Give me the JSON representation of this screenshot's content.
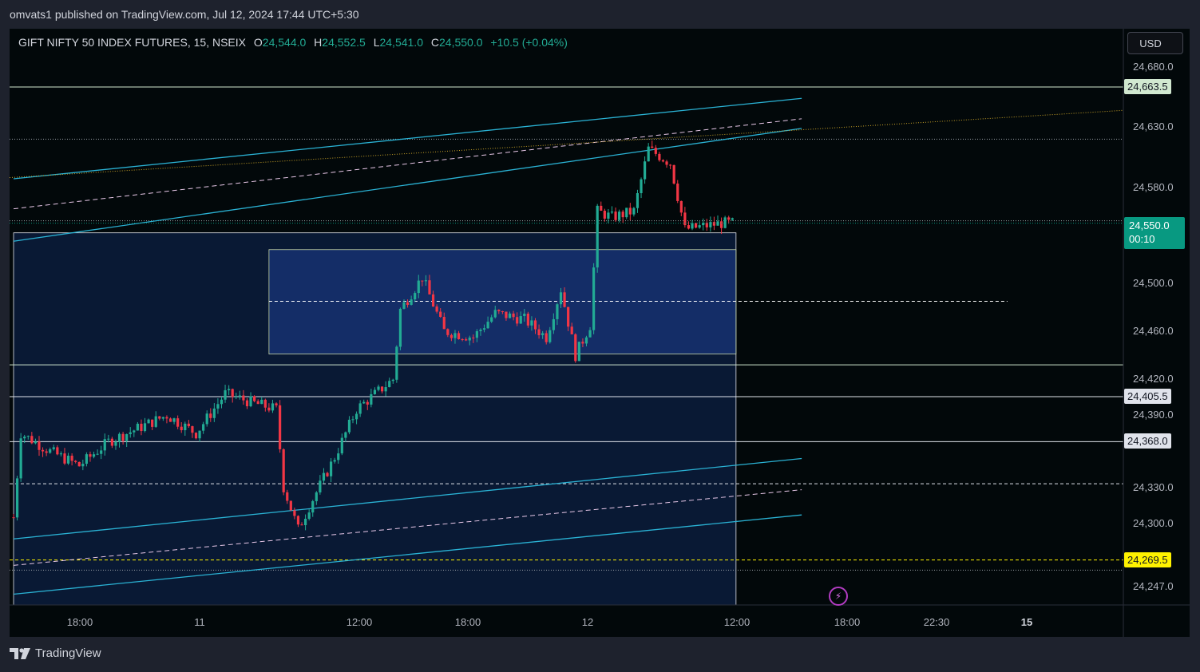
{
  "header": {
    "author": "omvats1",
    "published_text": "published on TradingView.com, Jul 12, 2024 17:44 UTC+5:30"
  },
  "legend": {
    "symbol": "GIFT NIFTY 50 INDEX FUTURES, 15, NSEIX",
    "o_label": "O",
    "o_value": "24,544.0",
    "h_label": "H",
    "h_value": "24,552.5",
    "l_label": "L",
    "l_value": "24,541.0",
    "c_label": "C",
    "c_value": "24,550.0",
    "change": "+10.5 (+0.04%)"
  },
  "currency": "USD",
  "last_price": {
    "price": "24,550.0",
    "countdown": "00:10",
    "color": "#089981"
  },
  "price_tags": [
    {
      "label": "24,663.5",
      "value": 24663.5,
      "bg": "#d1e8d0",
      "fg": "#131722"
    },
    {
      "label": "24,405.5",
      "value": 24405.5,
      "bg": "#e0e3eb",
      "fg": "#131722"
    },
    {
      "label": "24,368.0",
      "value": 24368.0,
      "bg": "#e0e3eb",
      "fg": "#131722"
    },
    {
      "label": "24,269.5",
      "value": 24269.5,
      "bg": "#fff200",
      "fg": "#131722"
    }
  ],
  "footer": {
    "brand": "TradingView"
  },
  "colors": {
    "up": "#22ab94",
    "down": "#f23645",
    "channel": "#2ab2d4",
    "zone": "#0f2a5e"
  },
  "chart_data": {
    "type": "candlestick",
    "symbol": "GIFT NIFTY 50 INDEX FUTURES",
    "timeframe": "15",
    "exchange": "NSEIX",
    "currency": "USD",
    "ylim": [
      24232,
      24712
    ],
    "y_ticks": [
      24680.0,
      24630.0,
      24580.0,
      24500.0,
      24460.0,
      24420.0,
      24390.0,
      24330.0,
      24300.0,
      24247.0
    ],
    "y_tick_labels": [
      "24,680.0",
      "24,630.0",
      "24,580.0",
      "24,500.0",
      "24,460.0",
      "24,420.0",
      "24,390.0",
      "24,330.0",
      "24,300.0",
      "24,247.0"
    ],
    "x_ticks": [
      "18:00",
      "11",
      "12:00",
      "18:00",
      "12",
      "12:00",
      "18:00",
      "22:30",
      "15"
    ],
    "x_bold_ticks": [
      "15"
    ],
    "ohlc_last": {
      "open": 24544.0,
      "high": 24552.5,
      "low": 24541.0,
      "close": 24550.0,
      "change": 10.5,
      "change_pct": 0.04
    },
    "anchors": [
      {
        "t": "Jul 10 15:30",
        "price": 24305
      },
      {
        "t": "Jul 10 16:00",
        "price": 24375
      },
      {
        "t": "Jul 10 18:00",
        "price": 24360
      },
      {
        "t": "Jul 10 20:00",
        "price": 24348
      },
      {
        "t": "Jul 10 22:00",
        "price": 24368
      },
      {
        "t": "Jul 11 02:00",
        "price": 24390
      },
      {
        "t": "Jul 11 04:00",
        "price": 24375
      },
      {
        "t": "Jul 11 06:00",
        "price": 24408
      },
      {
        "t": "Jul 11 08:00",
        "price": 24400
      },
      {
        "t": "Jul 11 09:30",
        "price": 24395
      },
      {
        "t": "Jul 11 10:00",
        "price": 24330
      },
      {
        "t": "Jul 11 11:00",
        "price": 24295
      },
      {
        "t": "Jul 11 12:00",
        "price": 24320
      },
      {
        "t": "Jul 11 13:30",
        "price": 24355
      },
      {
        "t": "Jul 11 15:00",
        "price": 24395
      },
      {
        "t": "Jul 11 16:30",
        "price": 24410
      },
      {
        "t": "Jul 11 17:30",
        "price": 24420
      },
      {
        "t": "Jul 11 18:00",
        "price": 24478
      },
      {
        "t": "Jul 11 19:30",
        "price": 24505
      },
      {
        "t": "Jul 11 21:00",
        "price": 24460
      },
      {
        "t": "Jul 11 23:00",
        "price": 24455
      },
      {
        "t": "Jul 12 00:30",
        "price": 24475
      },
      {
        "t": "Jul 12 02:30",
        "price": 24470
      },
      {
        "t": "Jul 12 04:00",
        "price": 24455
      },
      {
        "t": "Jul 12 05:00",
        "price": 24495
      },
      {
        "t": "Jul 12 06:00",
        "price": 24440
      },
      {
        "t": "Jul 12 07:00",
        "price": 24465
      },
      {
        "t": "Jul 12 07:30",
        "price": 24560
      },
      {
        "t": "Jul 12 08:30",
        "price": 24555
      },
      {
        "t": "Jul 12 10:00",
        "price": 24560
      },
      {
        "t": "Jul 12 11:00",
        "price": 24612
      },
      {
        "t": "Jul 12 12:30",
        "price": 24600
      },
      {
        "t": "Jul 12 13:30",
        "price": 24545
      },
      {
        "t": "Jul 12 15:00",
        "price": 24548
      },
      {
        "t": "Jul 12 16:00",
        "price": 24550
      }
    ],
    "horizontal_levels": [
      {
        "price": 24663.5,
        "style": "solid",
        "color": "#d1e8d0"
      },
      {
        "price": 24620.0,
        "style": "dotted",
        "color": "#9aa0a6"
      },
      {
        "price": 24552.0,
        "style": "dotted",
        "color": "#9aa0a6"
      },
      {
        "price": 24432.0,
        "style": "solid",
        "color": "#d1e8d0"
      },
      {
        "price": 24405.5,
        "style": "solid",
        "color": "#e0e3eb"
      },
      {
        "price": 24368.0,
        "style": "solid",
        "color": "#e0e3eb"
      },
      {
        "price": 24333.0,
        "style": "dashed",
        "color": "#e0e3eb"
      },
      {
        "price": 24269.5,
        "style": "dashed",
        "color": "#fff200"
      },
      {
        "price": 24261.0,
        "style": "dotted",
        "color": "#9aa0a6"
      }
    ],
    "zones": [
      {
        "name": "outer-zone",
        "from": "Jul 10 15:30",
        "to": "Jul 12 17:00",
        "low": 24232,
        "high": 24542,
        "color": "#0f2a5e"
      },
      {
        "name": "inner-range",
        "from": "Jul 11 09:00",
        "to": "Jul 12 17:00",
        "low": 24441,
        "high": 24528,
        "mid": 24485,
        "color": "#1c3a8a"
      }
    ],
    "channels": [
      {
        "name": "upper-channel",
        "color": "#2ab2d4",
        "top": [
          [
            "Jul 10 15:30",
            24587
          ],
          [
            "Jul 12 21:30",
            24654
          ]
        ],
        "mid": [
          [
            "Jul 10 15:30",
            24562
          ],
          [
            "Jul 12 21:30",
            24637
          ]
        ],
        "bottom": [
          [
            "Jul 10 15:30",
            24535
          ],
          [
            "Jul 12 21:30",
            24629
          ]
        ]
      },
      {
        "name": "lower-channel",
        "color": "#2ab2d4",
        "top": [
          [
            "Jul 10 15:30",
            24287
          ],
          [
            "Jul 12 21:30",
            24354
          ]
        ],
        "mid": [
          [
            "Jul 10 15:30",
            24265
          ],
          [
            "Jul 12 21:30",
            24328
          ]
        ],
        "bottom": [
          [
            "Jul 10 15:30",
            24241
          ],
          [
            "Jul 12 21:30",
            24307
          ]
        ]
      }
    ]
  }
}
